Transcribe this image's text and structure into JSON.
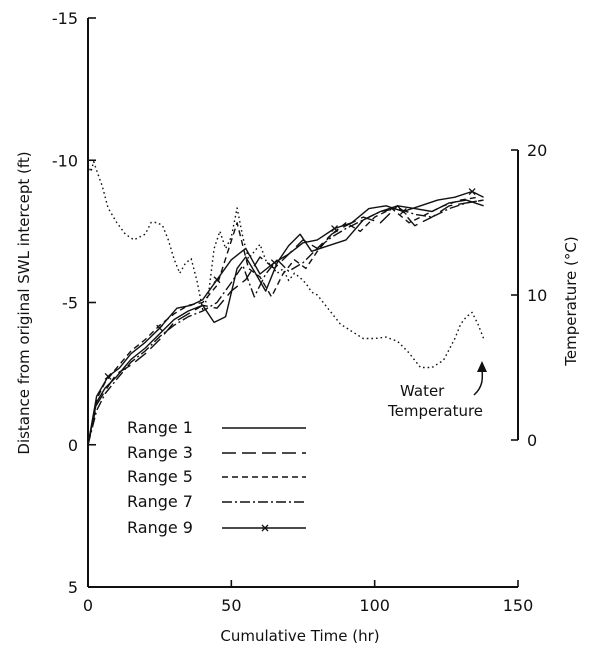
{
  "chart_data": {
    "type": "line",
    "title": "",
    "xlabel": "Cumulative Time (hr)",
    "ylabel": "Distance from original SWL intercept (ft)",
    "y2label": "Temperature (°C)",
    "xlim": [
      0,
      150
    ],
    "ylim": [
      5,
      -15
    ],
    "y2lim": [
      0,
      20
    ],
    "x_ticks": [
      "0",
      "50",
      "100",
      "150"
    ],
    "y_ticks": [
      "5",
      "0",
      "-5",
      "-10",
      "-15"
    ],
    "y2_ticks": [
      "0",
      "10",
      "20"
    ],
    "grid": false,
    "legend_position": "lower-left",
    "series": [
      {
        "name": "Range 1",
        "axis": "left",
        "dash": "solid",
        "x": [
          0,
          3,
          6,
          10,
          15,
          20,
          25,
          30,
          35,
          40,
          44,
          48,
          52,
          55,
          58,
          62,
          66,
          70,
          74,
          78,
          84,
          90,
          96,
          102,
          108,
          114,
          120,
          126,
          132,
          138
        ],
        "y": [
          0,
          -1.5,
          -2.0,
          -2.4,
          -3.0,
          -3.4,
          -3.9,
          -4.4,
          -4.7,
          -4.9,
          -4.3,
          -4.5,
          -6.2,
          -6.6,
          -6.1,
          -5.4,
          -6.4,
          -7.0,
          -7.4,
          -6.8,
          -7.0,
          -7.2,
          -7.9,
          -8.2,
          -8.4,
          -8.3,
          -8.2,
          -8.5,
          -8.6,
          -8.4
        ]
      },
      {
        "name": "Range 3",
        "axis": "left",
        "dash": "long-dash",
        "x": [
          0,
          3,
          6,
          10,
          15,
          20,
          25,
          30,
          35,
          40,
          45,
          50,
          55,
          60,
          65,
          70,
          75,
          80,
          85,
          90,
          96,
          102,
          108,
          114,
          120,
          126,
          132,
          138
        ],
        "y": [
          0,
          -1.4,
          -1.9,
          -2.5,
          -2.8,
          -3.2,
          -3.7,
          -4.3,
          -4.6,
          -4.9,
          -4.8,
          -5.4,
          -5.8,
          -6.6,
          -6.2,
          -6.7,
          -7.2,
          -6.9,
          -7.4,
          -7.7,
          -8.0,
          -7.8,
          -8.4,
          -7.7,
          -8.0,
          -8.4,
          -8.5,
          -8.6
        ]
      },
      {
        "name": "Range 5",
        "axis": "left",
        "dash": "short-dash",
        "x": [
          0,
          3,
          6,
          10,
          15,
          20,
          25,
          30,
          35,
          40,
          45,
          52,
          56,
          60,
          64,
          68,
          72,
          76,
          80,
          85,
          90,
          95,
          100,
          106,
          112,
          118,
          124,
          130,
          136
        ],
        "y": [
          0,
          -1.6,
          -2.2,
          -2.7,
          -3.3,
          -3.7,
          -4.2,
          -4.6,
          -4.9,
          -5.0,
          -5.6,
          -7.8,
          -6.2,
          -5.9,
          -5.2,
          -6.0,
          -6.5,
          -6.2,
          -6.8,
          -7.4,
          -7.8,
          -7.5,
          -8.0,
          -8.3,
          -7.8,
          -8.1,
          -8.4,
          -8.6,
          -8.7
        ]
      },
      {
        "name": "Range 7",
        "axis": "left",
        "dash": "dash-dot",
        "x": [
          0,
          3,
          6,
          10,
          15,
          20,
          25,
          30,
          35,
          40,
          45,
          50,
          54,
          58,
          62,
          66,
          70,
          75,
          80,
          85,
          90,
          96,
          102,
          108,
          114,
          120,
          126,
          132,
          138
        ],
        "y": [
          0,
          -1.2,
          -1.8,
          -2.3,
          -2.9,
          -3.3,
          -3.8,
          -4.2,
          -4.5,
          -4.7,
          -5.0,
          -5.7,
          -6.3,
          -5.2,
          -6.0,
          -6.5,
          -6.1,
          -6.4,
          -6.9,
          -7.3,
          -7.6,
          -7.9,
          -8.2,
          -8.3,
          -8.1,
          -8.0,
          -8.3,
          -8.5,
          -8.6
        ]
      },
      {
        "name": "Range 9",
        "axis": "left",
        "dash": "solid-x",
        "x": [
          0,
          3,
          7,
          11,
          15,
          20,
          25,
          31,
          36,
          40,
          45,
          50,
          55,
          60,
          65,
          70,
          75,
          80,
          86,
          92,
          98,
          104,
          110,
          116,
          122,
          128,
          134,
          138
        ],
        "y": [
          0,
          -1.7,
          -2.4,
          -2.7,
          -3.2,
          -3.6,
          -4.1,
          -4.8,
          -4.9,
          -5.1,
          -5.8,
          -6.5,
          -6.9,
          -6.0,
          -6.4,
          -6.7,
          -7.1,
          -7.2,
          -7.6,
          -7.8,
          -8.3,
          -8.4,
          -8.2,
          -8.4,
          -8.6,
          -8.7,
          -8.9,
          -8.7
        ]
      },
      {
        "name": "",
        "axis": "right",
        "dash": "dotted",
        "x": [
          0,
          1,
          2,
          3,
          5,
          7,
          10,
          13,
          16,
          20,
          22,
          24,
          26,
          28,
          30,
          32,
          34,
          36,
          38,
          40,
          42,
          44,
          46,
          48,
          50,
          52,
          54,
          56,
          58,
          60,
          62,
          64,
          66,
          68,
          70,
          72,
          74,
          76,
          78,
          80,
          84,
          88,
          92,
          96,
          100,
          104,
          108,
          112,
          116,
          120,
          124,
          128,
          130,
          132,
          134,
          136,
          138
        ],
        "y": [
          19.0,
          18.5,
          19.2,
          18.6,
          17.5,
          16.0,
          15.0,
          14.2,
          13.8,
          14.2,
          15.0,
          15.0,
          14.8,
          13.8,
          12.5,
          11.5,
          12.2,
          12.5,
          11.0,
          9.0,
          10.0,
          13.2,
          14.4,
          13.2,
          14.0,
          16.0,
          14.0,
          12.5,
          13.0,
          13.5,
          12.4,
          12.0,
          11.5,
          11.8,
          11.0,
          11.5,
          11.2,
          10.8,
          10.2,
          10.0,
          9.0,
          8.0,
          7.5,
          7.0,
          7.0,
          7.1,
          6.8,
          6.0,
          5.0,
          5.0,
          5.5,
          7.0,
          8.0,
          8.5,
          8.8,
          8.0,
          7.0
        ]
      }
    ]
  },
  "legend": {
    "items": [
      {
        "label": "Range 1",
        "dash": "solid"
      },
      {
        "label": "Range 3",
        "dash": "long-dash"
      },
      {
        "label": "Range 5",
        "dash": "short-dash"
      },
      {
        "label": "Range 7",
        "dash": "dash-dot"
      },
      {
        "label": "Range 9",
        "dash": "solid-x"
      }
    ]
  },
  "annotation": {
    "line1": "Water",
    "line2": "Temperature"
  }
}
